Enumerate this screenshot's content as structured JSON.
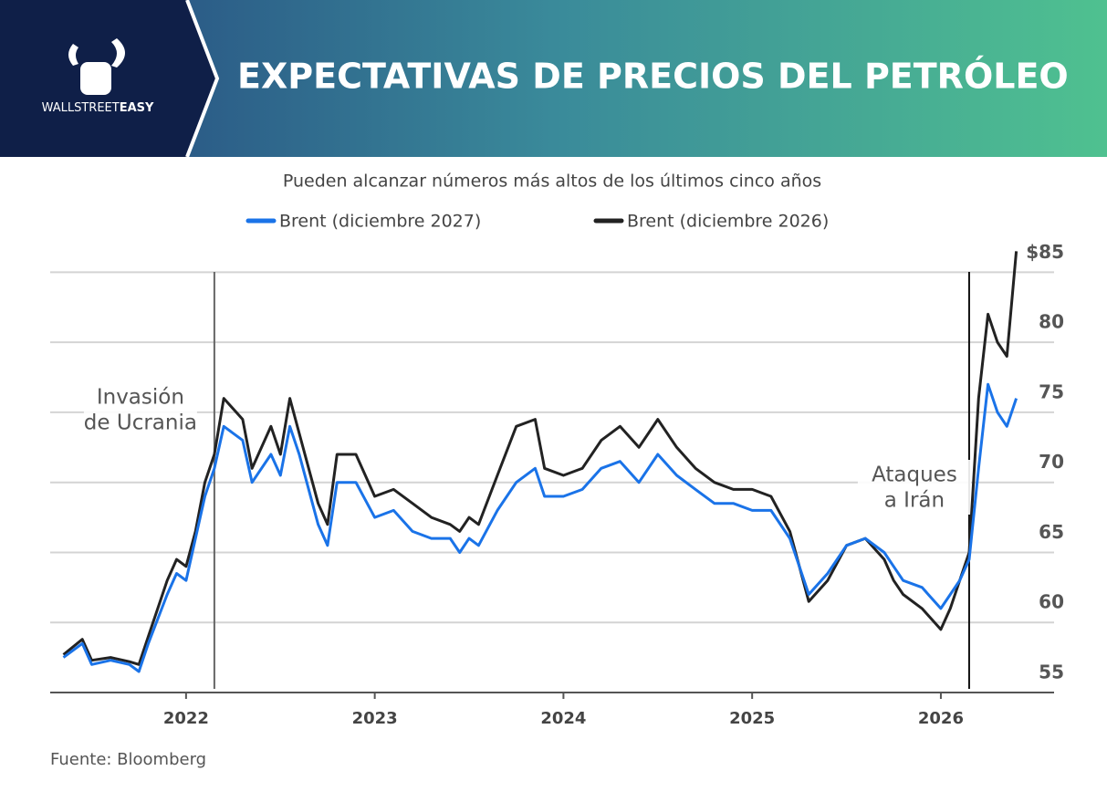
{
  "header": {
    "logo": {
      "light": "WALLSTREET",
      "bold": "EASY"
    },
    "title": "EXPECTATIVAS DE PRECIOS DEL PETRÓLEO"
  },
  "chart_data": {
    "type": "line",
    "subtitle": "Pueden alcanzar números más altos de los últimos cinco años",
    "x": [
      2021.35,
      2021.45,
      2021.5,
      2021.6,
      2021.7,
      2021.75,
      2021.8,
      2021.9,
      2021.95,
      2022.0,
      2022.05,
      2022.1,
      2022.15,
      2022.2,
      2022.3,
      2022.35,
      2022.45,
      2022.5,
      2022.55,
      2022.6,
      2022.7,
      2022.75,
      2022.8,
      2022.9,
      2023.0,
      2023.1,
      2023.2,
      2023.3,
      2023.4,
      2023.45,
      2023.5,
      2023.55,
      2023.65,
      2023.75,
      2023.85,
      2023.9,
      2024.0,
      2024.1,
      2024.2,
      2024.3,
      2024.4,
      2024.5,
      2024.6,
      2024.7,
      2024.8,
      2024.9,
      2025.0,
      2025.1,
      2025.2,
      2025.25,
      2025.3,
      2025.4,
      2025.5,
      2025.6,
      2025.7,
      2025.75,
      2025.8,
      2025.9,
      2026.0,
      2026.05,
      2026.1,
      2026.15,
      2026.2,
      2026.25,
      2026.3,
      2026.35,
      2026.4
    ],
    "series": [
      {
        "name": "Brent (diciembre 2027)",
        "color": "#1a73e8",
        "values": [
          57.5,
          58.5,
          57,
          57.3,
          57,
          56.5,
          58.5,
          62,
          63.5,
          63,
          66,
          69,
          71,
          74,
          73,
          70,
          72,
          70.5,
          74,
          72,
          67,
          65.5,
          70,
          70,
          67.5,
          68,
          66.5,
          66,
          66,
          65,
          66,
          65.5,
          68,
          70,
          71,
          69,
          69,
          69.5,
          71,
          71.5,
          70,
          72,
          70.5,
          69.5,
          68.5,
          68.5,
          68,
          68,
          66,
          64,
          62,
          63.5,
          65.5,
          66,
          65,
          64,
          63,
          62.5,
          61,
          62,
          63,
          64.5,
          71,
          77,
          75,
          74,
          76
        ]
      },
      {
        "name": "Brent (diciembre 2026)",
        "color": "#222222",
        "values": [
          57.7,
          58.8,
          57.3,
          57.5,
          57.2,
          57,
          59,
          63,
          64.5,
          64,
          66.5,
          70,
          72,
          76,
          74.5,
          71,
          74,
          72,
          76,
          73.5,
          68.5,
          67,
          72,
          72,
          69,
          69.5,
          68.5,
          67.5,
          67,
          66.5,
          67.5,
          67,
          70.5,
          74,
          74.5,
          71,
          70.5,
          71,
          73,
          74,
          72.5,
          74.5,
          72.5,
          71,
          70,
          69.5,
          69.5,
          69,
          66.5,
          64,
          61.5,
          63,
          65.5,
          66,
          64.5,
          63,
          62,
          61,
          59.5,
          61,
          63,
          65,
          76,
          82,
          80,
          79,
          86.5
        ]
      }
    ],
    "xlim": [
      2021.28,
      2026.6
    ],
    "xticks": [
      2022,
      2023,
      2024,
      2025,
      2026
    ],
    "ylim": [
      55,
      87.5
    ],
    "yticks": [
      55,
      60,
      65,
      70,
      75,
      80,
      {
        "value": 85,
        "label": "$85"
      }
    ],
    "grid": true,
    "annotations": [
      {
        "text": [
          "Invasión",
          "de Ucrania"
        ],
        "x": 2022.15
      },
      {
        "text": [
          "Ataques",
          "a Irán"
        ],
        "x": 2026.15
      }
    ],
    "source": "Fuente: Bloomberg"
  }
}
